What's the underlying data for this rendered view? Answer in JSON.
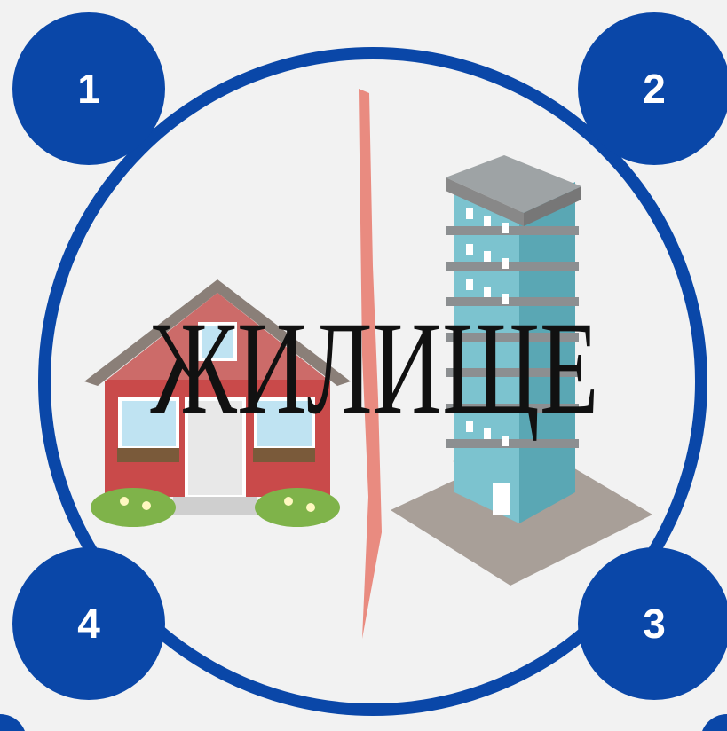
{
  "title": "ЖИЛИЩЕ",
  "badges": [
    "1",
    "2",
    "3",
    "4"
  ]
}
